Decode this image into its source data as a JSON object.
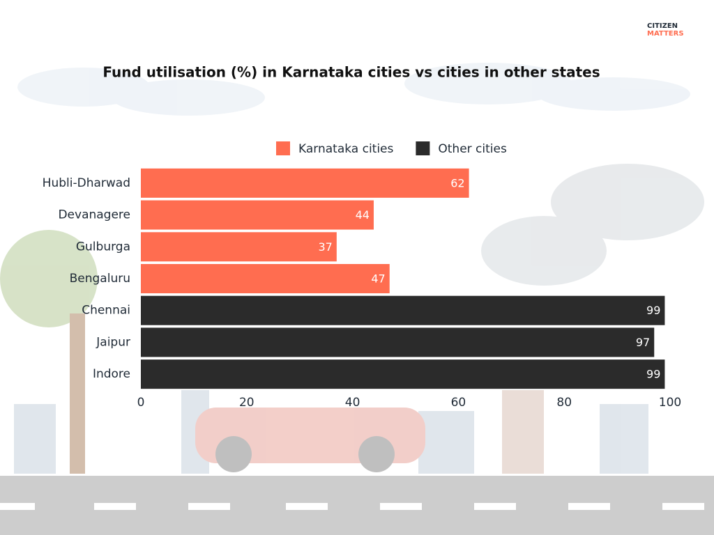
{
  "brand": {
    "line1": "CITIZEN",
    "line2": "MATTERS"
  },
  "chart_data": {
    "type": "hbar",
    "title": "Fund utilisation (%) in Karnataka cities vs cities in other states",
    "categories": [
      "Hubli-Dharwad",
      "Devanagere",
      "Gulburga",
      "Bengaluru",
      "Chennai",
      "Jaipur",
      "Indore"
    ],
    "series": [
      {
        "name": "Karnataka cities",
        "color": "#ff6d50",
        "values": [
          62,
          44,
          37,
          47,
          null,
          null,
          null
        ]
      },
      {
        "name": "Other cities",
        "color": "#2b2b2b",
        "values": [
          null,
          null,
          null,
          null,
          99,
          97,
          99
        ]
      }
    ],
    "xlim": [
      0,
      100
    ],
    "xticks": [
      0,
      20,
      40,
      60,
      80,
      100
    ],
    "grid": false
  }
}
